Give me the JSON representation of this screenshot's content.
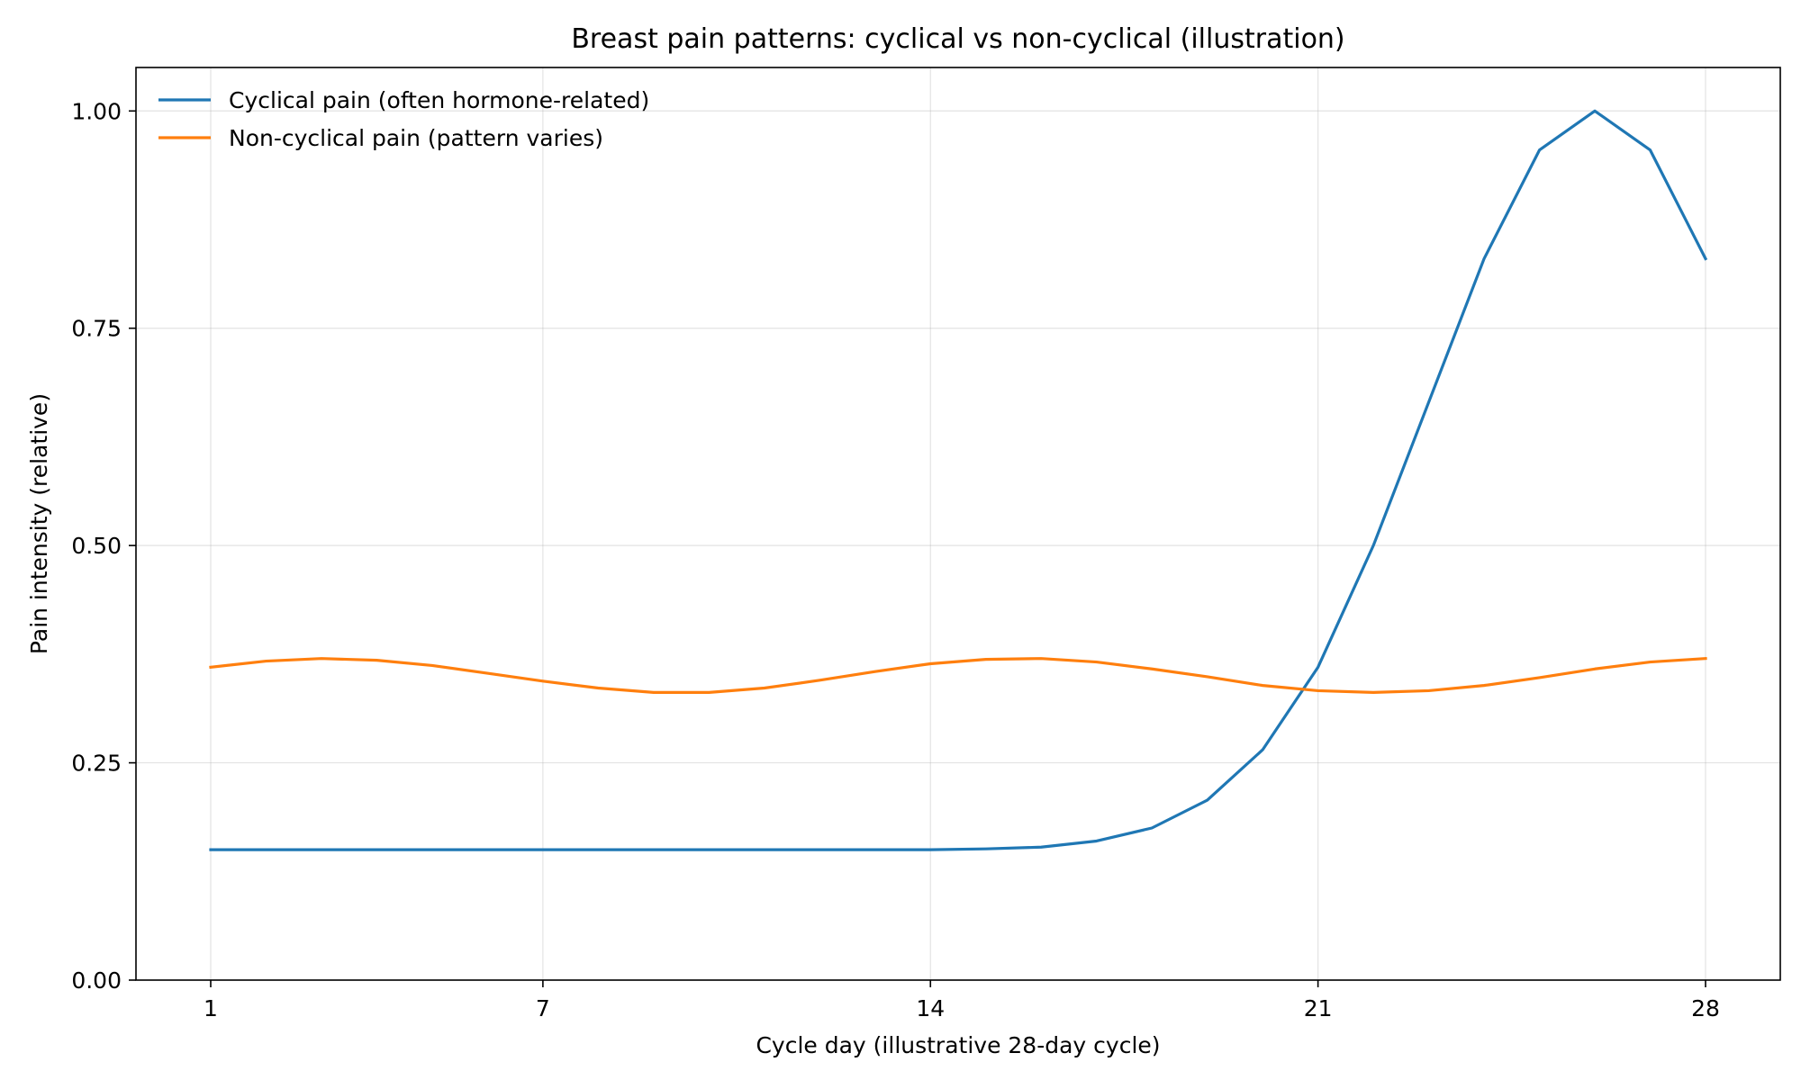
{
  "chart_data": {
    "type": "line",
    "title": "Breast pain patterns: cyclical vs non-cyclical (illustration)",
    "xlabel": "Cycle day (illustrative 28-day cycle)",
    "ylabel": "Pain intensity (relative)",
    "xlim": [
      -0.35,
      29.35
    ],
    "ylim": [
      0,
      1.05
    ],
    "x_ticks": [
      1,
      7,
      14,
      21,
      28
    ],
    "x_tick_labels": [
      "1",
      "7",
      "14",
      "21",
      "28"
    ],
    "y_ticks": [
      0,
      0.25,
      0.5,
      0.75,
      1.0
    ],
    "y_tick_labels": [
      "0.00",
      "0.25",
      "0.50",
      "0.75",
      "1.00"
    ],
    "grid": true,
    "legend_position": "top-left",
    "x": [
      1,
      2,
      3,
      4,
      5,
      6,
      7,
      8,
      9,
      10,
      11,
      12,
      13,
      14,
      15,
      16,
      17,
      18,
      19,
      20,
      21,
      22,
      23,
      24,
      25,
      26,
      27,
      28
    ],
    "series": [
      {
        "name": "Cyclical pain (often hormone-related)",
        "color": "#1f77b4",
        "values": [
          0.15,
          0.15,
          0.15,
          0.15,
          0.15,
          0.15,
          0.15,
          0.15,
          0.15,
          0.15,
          0.15,
          0.15,
          0.15,
          0.15,
          0.151,
          0.153,
          0.16,
          0.175,
          0.207,
          0.265,
          0.36,
          0.5,
          0.665,
          0.83,
          0.955,
          1.0,
          0.955,
          0.83
        ]
      },
      {
        "name": "Non-cyclical pain (pattern varies)",
        "color": "#ff7f0e",
        "values": [
          0.36,
          0.367,
          0.37,
          0.368,
          0.362,
          0.353,
          0.344,
          0.336,
          0.331,
          0.331,
          0.336,
          0.345,
          0.355,
          0.364,
          0.369,
          0.37,
          0.366,
          0.358,
          0.349,
          0.339,
          0.333,
          0.331,
          0.333,
          0.339,
          0.348,
          0.358,
          0.366,
          0.37
        ]
      }
    ]
  }
}
